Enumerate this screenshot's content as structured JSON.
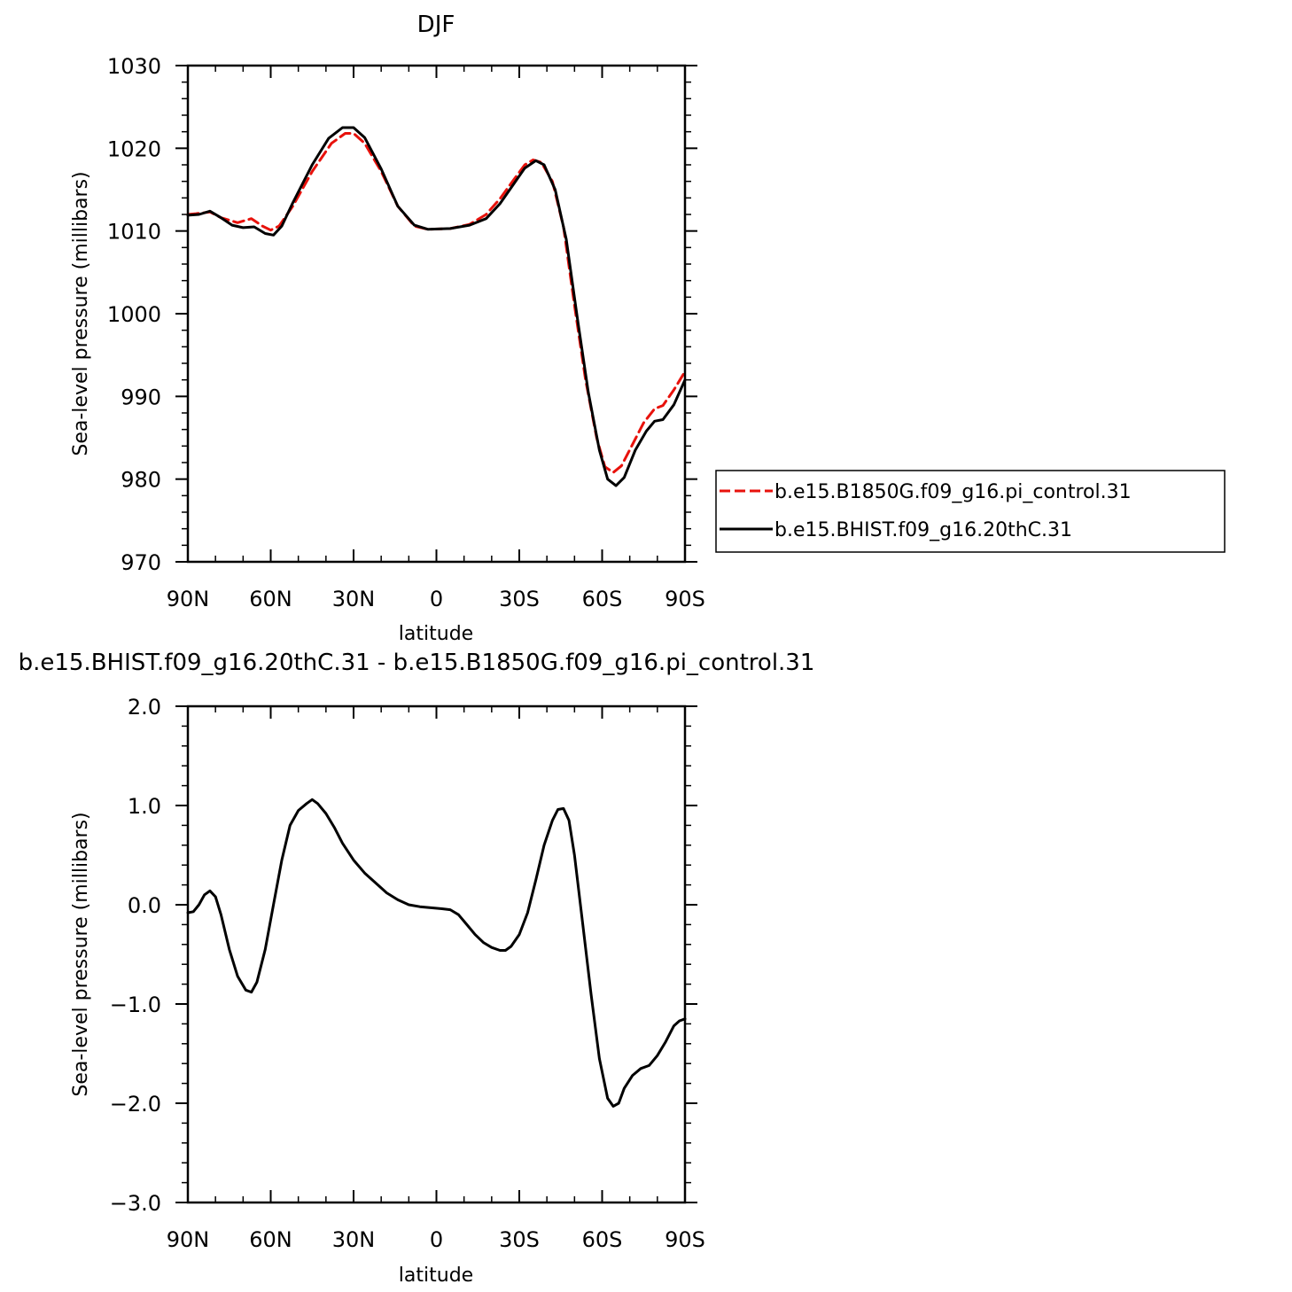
{
  "chart_data": [
    {
      "type": "line",
      "title": "DJF",
      "xlabel": "latitude",
      "ylabel": "Sea-level pressure (millibars)",
      "xlim": [
        90,
        -90
      ],
      "ylim": [
        970,
        1030
      ],
      "xticks": [
        {
          "value": 90,
          "label": "90N"
        },
        {
          "value": 60,
          "label": "60N"
        },
        {
          "value": 30,
          "label": "30N"
        },
        {
          "value": 0,
          "label": "0"
        },
        {
          "value": -30,
          "label": "30S"
        },
        {
          "value": -60,
          "label": "60S"
        },
        {
          "value": -90,
          "label": "90S"
        }
      ],
      "yticks": [
        {
          "value": 1030,
          "label": "1030"
        },
        {
          "value": 1020,
          "label": "1020"
        },
        {
          "value": 1010,
          "label": "1010"
        },
        {
          "value": 1000,
          "label": "1000"
        },
        {
          "value": 990,
          "label": "990"
        },
        {
          "value": 980,
          "label": "980"
        },
        {
          "value": 970,
          "label": "970"
        }
      ],
      "legend_position": "right",
      "series": [
        {
          "name": "b.e15.B1850G.f09_g16.pi_control.31",
          "color": "#e8120c",
          "style": "dashed",
          "points": [
            [
              90,
              1012.0
            ],
            [
              87,
              1012.1
            ],
            [
              82,
              1012.3
            ],
            [
              78,
              1011.6
            ],
            [
              72,
              1011.0
            ],
            [
              67,
              1011.5
            ],
            [
              63,
              1010.6
            ],
            [
              60,
              1010.1
            ],
            [
              57,
              1010.6
            ],
            [
              52,
              1013.0
            ],
            [
              45,
              1017.2
            ],
            [
              38,
              1020.6
            ],
            [
              33,
              1021.8
            ],
            [
              30,
              1021.8
            ],
            [
              26,
              1020.6
            ],
            [
              20,
              1017.2
            ],
            [
              14,
              1013.0
            ],
            [
              8,
              1010.6
            ],
            [
              3,
              1010.2
            ],
            [
              -5,
              1010.3
            ],
            [
              -12,
              1010.8
            ],
            [
              -18,
              1012.0
            ],
            [
              -23,
              1013.9
            ],
            [
              -28,
              1016.2
            ],
            [
              -32,
              1018.0
            ],
            [
              -35,
              1018.6
            ],
            [
              -38,
              1018.3
            ],
            [
              -42,
              1016.0
            ],
            [
              -46,
              1010.5
            ],
            [
              -50,
              1001.0
            ],
            [
              -54,
              992.0
            ],
            [
              -58,
              985.0
            ],
            [
              -61,
              981.5
            ],
            [
              -64,
              980.8
            ],
            [
              -67,
              981.6
            ],
            [
              -71,
              984.2
            ],
            [
              -75,
              986.8
            ],
            [
              -79,
              988.5
            ],
            [
              -82,
              988.9
            ],
            [
              -86,
              990.8
            ],
            [
              -90,
              993.0
            ]
          ]
        },
        {
          "name": "b.e15.BHIST.f09_g16.20thC.31",
          "color": "#000000",
          "style": "solid",
          "points": [
            [
              90,
              1011.9
            ],
            [
              86,
              1012.0
            ],
            [
              82,
              1012.4
            ],
            [
              78,
              1011.6
            ],
            [
              74,
              1010.7
            ],
            [
              70,
              1010.4
            ],
            [
              66,
              1010.5
            ],
            [
              62,
              1009.7
            ],
            [
              59,
              1009.5
            ],
            [
              56,
              1010.6
            ],
            [
              52,
              1013.4
            ],
            [
              45,
              1018.0
            ],
            [
              39,
              1021.2
            ],
            [
              34,
              1022.5
            ],
            [
              30,
              1022.5
            ],
            [
              26,
              1021.3
            ],
            [
              20,
              1017.5
            ],
            [
              14,
              1013.0
            ],
            [
              8,
              1010.7
            ],
            [
              3,
              1010.2
            ],
            [
              -5,
              1010.3
            ],
            [
              -12,
              1010.7
            ],
            [
              -18,
              1011.5
            ],
            [
              -23,
              1013.3
            ],
            [
              -28,
              1015.7
            ],
            [
              -32,
              1017.6
            ],
            [
              -36,
              1018.5
            ],
            [
              -39,
              1018.0
            ],
            [
              -43,
              1015.0
            ],
            [
              -47,
              1009.0
            ],
            [
              -51,
              999.5
            ],
            [
              -55,
              990.5
            ],
            [
              -59,
              983.5
            ],
            [
              -62,
              980.0
            ],
            [
              -65,
              979.2
            ],
            [
              -68,
              980.2
            ],
            [
              -72,
              983.5
            ],
            [
              -76,
              985.8
            ],
            [
              -79,
              987.0
            ],
            [
              -82,
              987.2
            ],
            [
              -86,
              989.0
            ],
            [
              -90,
              992.0
            ]
          ]
        }
      ]
    },
    {
      "type": "line",
      "title": "b.e15.BHIST.f09_g16.20thC.31 - b.e15.B1850G.f09_g16.pi_control.31",
      "xlabel": "latitude",
      "ylabel": "Sea-level pressure (millibars)",
      "xlim": [
        90,
        -90
      ],
      "ylim": [
        -3.0,
        2.0
      ],
      "xticks": [
        {
          "value": 90,
          "label": "90N"
        },
        {
          "value": 60,
          "label": "60N"
        },
        {
          "value": 30,
          "label": "30N"
        },
        {
          "value": 0,
          "label": "0"
        },
        {
          "value": -30,
          "label": "30S"
        },
        {
          "value": -60,
          "label": "60S"
        },
        {
          "value": -90,
          "label": "90S"
        }
      ],
      "yticks": [
        {
          "value": 2.0,
          "label": "2.0"
        },
        {
          "value": 1.0,
          "label": "1.0"
        },
        {
          "value": 0.0,
          "label": "0.0"
        },
        {
          "value": -1.0,
          "label": "−1.0"
        },
        {
          "value": -2.0,
          "label": "−2.0"
        },
        {
          "value": -3.0,
          "label": "−3.0"
        }
      ],
      "series": [
        {
          "color": "#000000",
          "style": "solid",
          "points": [
            [
              90,
              -0.08
            ],
            [
              88,
              -0.07
            ],
            [
              86,
              0.0
            ],
            [
              84,
              0.1
            ],
            [
              82,
              0.14
            ],
            [
              80,
              0.08
            ],
            [
              78,
              -0.1
            ],
            [
              75,
              -0.45
            ],
            [
              72,
              -0.72
            ],
            [
              69,
              -0.86
            ],
            [
              67,
              -0.88
            ],
            [
              65,
              -0.78
            ],
            [
              62,
              -0.45
            ],
            [
              59,
              0.0
            ],
            [
              56,
              0.45
            ],
            [
              53,
              0.8
            ],
            [
              50,
              0.95
            ],
            [
              47,
              1.02
            ],
            [
              45,
              1.06
            ],
            [
              43,
              1.02
            ],
            [
              40,
              0.92
            ],
            [
              37,
              0.78
            ],
            [
              34,
              0.62
            ],
            [
              30,
              0.45
            ],
            [
              26,
              0.32
            ],
            [
              22,
              0.22
            ],
            [
              18,
              0.12
            ],
            [
              14,
              0.05
            ],
            [
              10,
              0.0
            ],
            [
              6,
              -0.02
            ],
            [
              2,
              -0.03
            ],
            [
              -2,
              -0.04
            ],
            [
              -5,
              -0.05
            ],
            [
              -8,
              -0.1
            ],
            [
              -11,
              -0.2
            ],
            [
              -14,
              -0.3
            ],
            [
              -17,
              -0.38
            ],
            [
              -20,
              -0.43
            ],
            [
              -23,
              -0.46
            ],
            [
              -25,
              -0.46
            ],
            [
              -27,
              -0.42
            ],
            [
              -30,
              -0.3
            ],
            [
              -33,
              -0.08
            ],
            [
              -36,
              0.25
            ],
            [
              -39,
              0.6
            ],
            [
              -42,
              0.85
            ],
            [
              -44,
              0.96
            ],
            [
              -46,
              0.97
            ],
            [
              -48,
              0.85
            ],
            [
              -50,
              0.5
            ],
            [
              -53,
              -0.2
            ],
            [
              -56,
              -0.9
            ],
            [
              -59,
              -1.55
            ],
            [
              -62,
              -1.95
            ],
            [
              -64,
              -2.03
            ],
            [
              -66,
              -2.0
            ],
            [
              -68,
              -1.85
            ],
            [
              -71,
              -1.72
            ],
            [
              -74,
              -1.65
            ],
            [
              -77,
              -1.62
            ],
            [
              -80,
              -1.52
            ],
            [
              -83,
              -1.38
            ],
            [
              -86,
              -1.22
            ],
            [
              -88,
              -1.17
            ],
            [
              -90,
              -1.15
            ]
          ]
        }
      ]
    }
  ]
}
